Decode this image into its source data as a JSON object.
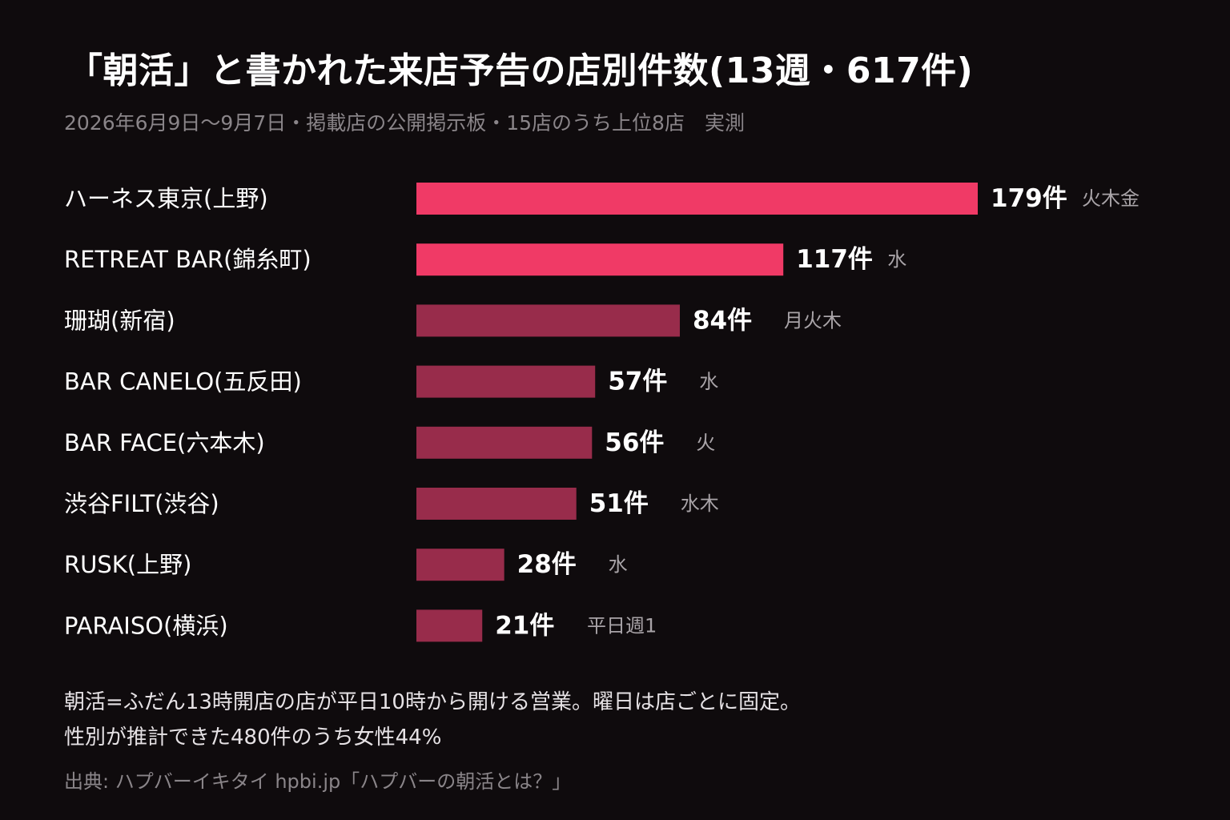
{
  "header": {
    "title": "「朝活」と書かれた来店予告の店別件数(13週・617件)",
    "subtitle": "2026年6月9日〜9月7日・掲載店の公開掲示板・15店のうち上位8店　実測"
  },
  "chart_data": {
    "type": "bar",
    "orientation": "horizontal",
    "title": "「朝活」と書かれた来店予告の店別件数(13週・617件)",
    "subtitle": "2026年6月9日〜9月7日・掲載店の公開掲示板・15店のうち上位8店　実測",
    "xlabel": "",
    "ylabel": "",
    "categories": [
      "ハーネス東京(上野)",
      "RETREAT BAR(錦糸町)",
      "珊瑚(新宿)",
      "BAR CANELO(五反田)",
      "BAR FACE(六本木)",
      "渋谷FILT(渋谷)",
      "RUSK(上野)",
      "PARAISO(横浜)"
    ],
    "values": [
      179,
      117,
      84,
      57,
      56,
      51,
      28,
      21
    ],
    "value_labels": [
      "179件",
      "117件",
      "84件",
      "57件",
      "56件",
      "51件",
      "28件",
      "21件"
    ],
    "days": [
      "火木金",
      "水",
      "月火木",
      "水",
      "火",
      "水木",
      "水",
      "平日週1"
    ],
    "xlim": [
      0,
      179
    ],
    "grid": false,
    "colors": {
      "highlight": "#f03a66",
      "normal": "#982c4b"
    },
    "highlight_count": 2
  },
  "notes": {
    "line1": "朝活=ふだん13時開店の店が平日10時から開ける営業。曜日は店ごとに固定。",
    "line2": "性別が推計できた480件のうち女性44%"
  },
  "source": "出典: ハプバーイキタイ hpbi.jp「ハプバーの朝活とは？」"
}
